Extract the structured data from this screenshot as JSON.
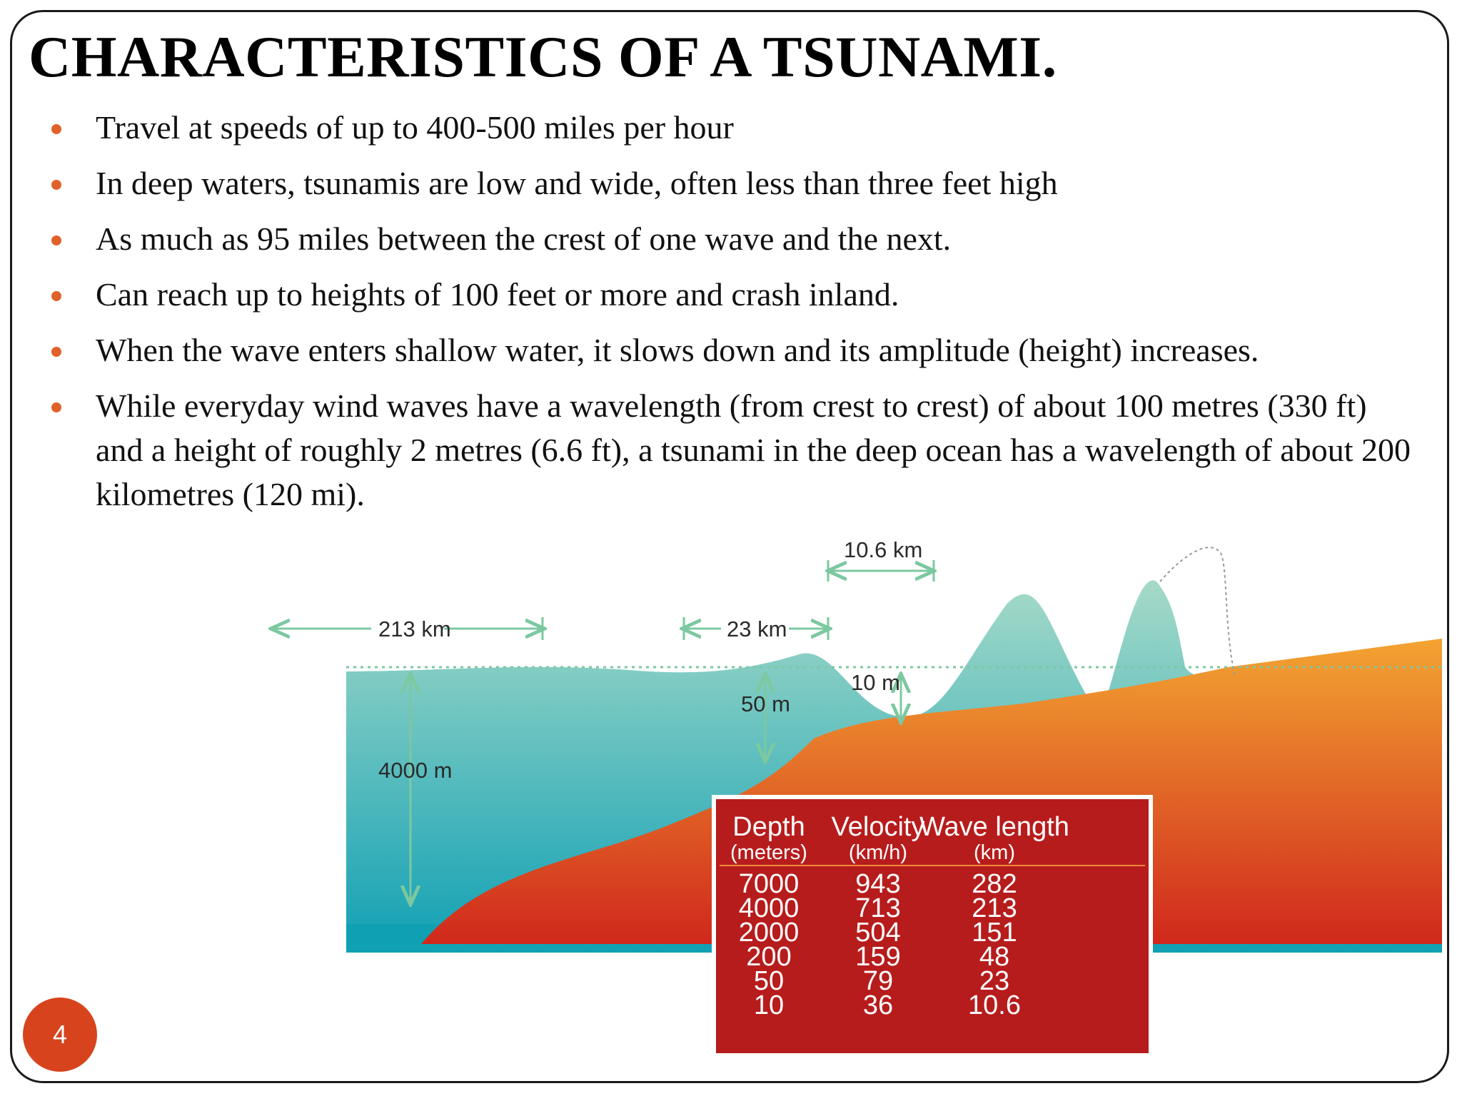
{
  "slide": {
    "title": "CHARACTERISTICS OF A TSUNAMI.",
    "number": "4"
  },
  "bullets": [
    "Travel at speeds of up to 400-500 miles per hour",
    "In deep waters, tsunamis are low and wide, often less than three feet high",
    "As much as 95 miles between the crest of one wave and the next.",
    "Can reach up to heights of 100 feet or more and  crash inland.",
    "When the wave enters shallow water, it slows down  and its amplitude (height) increases.",
    "While everyday wind waves have a wavelength  (from crest to crest) of about 100 metres (330 ft)  and a height of roughly 2 metres (6.6 ft), a tsunami  in the deep ocean has a wavelength of about 200  kilometres (120 mi)."
  ],
  "diagram": {
    "labels": {
      "wavelength_deep": "213 km",
      "wavelength_mid": "23 km",
      "wavelength_shallow": "10.6 km",
      "depth_deep": "4000 m",
      "depth_mid": "50 m",
      "depth_shallow": "10 m"
    },
    "colors": {
      "water_top": "#a6dac8",
      "water_bottom": "#10a0b4",
      "land_top": "#f3a432",
      "land_bottom": "#d0281c",
      "arrow": "#7cc8a0",
      "table_bg": "#b71c1c"
    },
    "table": {
      "headers": [
        "Depth",
        "Velocity",
        "Wave length"
      ],
      "units": [
        "(meters)",
        "(km/h)",
        "(km)"
      ],
      "rows": [
        [
          "7000",
          "943",
          "282"
        ],
        [
          "4000",
          "713",
          "213"
        ],
        [
          "2000",
          "504",
          "151"
        ],
        [
          "200",
          "159",
          "48"
        ],
        [
          "50",
          "79",
          "23"
        ],
        [
          "10",
          "36",
          "10.6"
        ]
      ]
    }
  }
}
